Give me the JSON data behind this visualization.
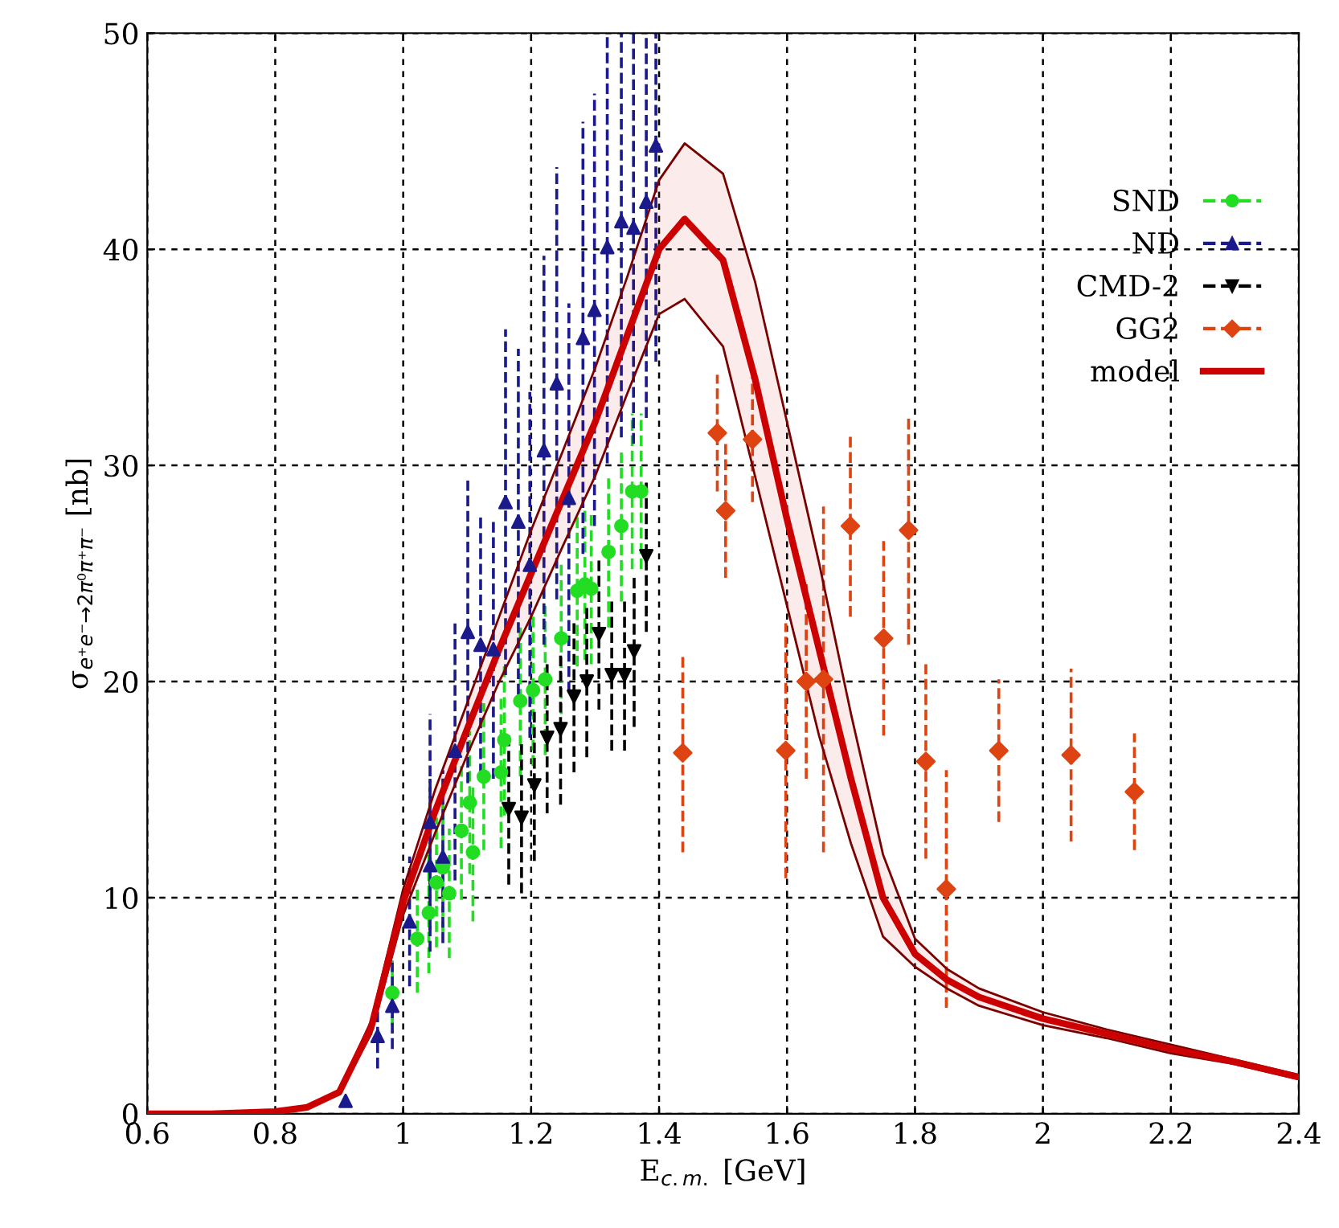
{
  "chart_data": {
    "type": "scatter",
    "xlabel": "E$_{c.m.}$ [GeV]",
    "ylabel": "σ$_{e⁺e⁻→2π⁰π⁺π⁻}$ [nb]",
    "xlim": [
      0.6,
      2.4
    ],
    "xticks": [
      0.6,
      0.8,
      1,
      1.2,
      1.4,
      1.6,
      1.8,
      2,
      2.2,
      2.4
    ],
    "ylim": [
      0,
      50
    ],
    "yticks": [
      0,
      10,
      20,
      30,
      40,
      50
    ],
    "grid": true,
    "legend": "top right",
    "series": [
      {
        "name": "SND",
        "color": "#22dd22",
        "marker": "circle",
        "line_style": "dashed",
        "x": [
          0.983,
          1.022,
          1.04,
          1.052,
          1.062,
          1.072,
          1.091,
          1.104,
          1.109,
          1.126,
          1.153,
          1.158,
          1.183,
          1.203,
          1.222,
          1.247,
          1.272,
          1.284,
          1.294,
          1.321,
          1.341,
          1.358,
          1.372
        ],
        "values": [
          5.6,
          8.1,
          9.3,
          10.7,
          11.4,
          10.2,
          13.1,
          14.4,
          12.1,
          15.6,
          15.8,
          17.3,
          19.1,
          19.6,
          20.1,
          22,
          24.2,
          24.5,
          24.3,
          26,
          27.2,
          28.8,
          28.8
        ],
        "errors": [
          1.5,
          2.5,
          2.8,
          3,
          3,
          3,
          3.2,
          3.3,
          3.2,
          3.4,
          3.5,
          3.5,
          3.5,
          3.5,
          3.5,
          3.5,
          3.5,
          3.5,
          3.5,
          3.5,
          3.5,
          3.6,
          3.6
        ]
      },
      {
        "name": "ND",
        "color": "#1a1a8c",
        "marker": "triangle",
        "line_style": "dashed",
        "x": [
          0.91,
          0.96,
          0.983,
          1.01,
          1.042,
          1.042,
          1.062,
          1.081,
          1.101,
          1.121,
          1.141,
          1.16,
          1.18,
          1.198,
          1.22,
          1.24,
          1.259,
          1.281,
          1.299,
          1.319,
          1.341,
          1.36,
          1.38,
          1.395
        ],
        "values": [
          0.6,
          3.6,
          5,
          8.9,
          11.5,
          13.5,
          11.9,
          16.8,
          22.3,
          21.7,
          21.5,
          28.3,
          27.4,
          25.4,
          30.7,
          33.8,
          28.5,
          35.9,
          37.2,
          40.1,
          41.3,
          41,
          42.2,
          44.8
        ],
        "errors": [
          null,
          1.5,
          2,
          3,
          4,
          5,
          4,
          6,
          7,
          6,
          6,
          8,
          8,
          8,
          9,
          10,
          9,
          [
            25.9,
            45.9
          ],
          [
            27.2,
            47.2
          ],
          [
            30.1,
            50
          ],
          [
            31.3,
            50
          ],
          [
            31,
            50
          ],
          [
            32.2,
            50
          ],
          [
            34.8,
            50
          ]
        ]
      },
      {
        "name": "CMD-2",
        "color": "#000000",
        "marker": "triangle_down",
        "line_style": "dashed",
        "x": [
          1.165,
          1.185,
          1.205,
          1.225,
          1.246,
          1.267,
          1.287,
          1.306,
          1.326,
          1.346,
          1.361,
          1.38
        ],
        "values": [
          14.1,
          13.7,
          15.2,
          17.4,
          17.8,
          19.3,
          20,
          22.2,
          20.3,
          20.3,
          21.4,
          25.8
        ],
        "errors": [
          3.5,
          3.5,
          3.5,
          3.5,
          3.5,
          3.5,
          3.5,
          3.5,
          3.5,
          3.5,
          3.5,
          3.5
        ]
      },
      {
        "name": "GG2",
        "color": "#dd4411",
        "marker": "diamond",
        "line_style": "dashed",
        "x": [
          1.437,
          1.491,
          1.504,
          1.546,
          1.598,
          1.63,
          1.657,
          1.699,
          1.751,
          1.79,
          1.817,
          1.849,
          1.931,
          2.044,
          2.143
        ],
        "values": [
          16.7,
          31.5,
          27.9,
          31.2,
          16.8,
          20,
          20.1,
          27.2,
          22,
          27,
          16.3,
          10.4,
          16.8,
          16.6,
          14.9
        ],
        "errors": [
          4.6,
          2.7,
          3.1,
          2.9,
          5.9,
          4.5,
          8,
          4.2,
          4.5,
          5.3,
          4.5,
          5.5,
          3.3,
          4,
          2.7
        ]
      },
      {
        "name": "model",
        "type": "line",
        "color": "#cc0000",
        "marker": "none",
        "line_style": "solid",
        "x": [
          0.6,
          0.7,
          0.8,
          0.85,
          0.9,
          0.95,
          1.0,
          1.05,
          1.1,
          1.15,
          1.2,
          1.25,
          1.3,
          1.35,
          1.4,
          1.44,
          1.5,
          1.55,
          1.6,
          1.65,
          1.7,
          1.75,
          1.8,
          1.85,
          1.9,
          2.0,
          2.1,
          2.2,
          2.3,
          2.4
        ],
        "values": [
          0,
          0,
          0.1,
          0.3,
          1,
          4,
          9.8,
          14,
          17.8,
          21.5,
          25,
          28.5,
          32,
          36,
          40,
          41.4,
          39.5,
          34,
          27.5,
          21.5,
          15.5,
          10,
          7.4,
          6.2,
          5.4,
          4.4,
          3.7,
          3,
          2.4,
          1.7
        ],
        "upper": [
          0,
          0,
          0.1,
          0.3,
          1.1,
          4.3,
          10.4,
          15,
          19,
          23,
          27,
          30.7,
          34.5,
          38.7,
          43.2,
          44.9,
          43.5,
          38.5,
          32,
          25.5,
          18.5,
          12,
          8.1,
          6.7,
          5.8,
          4.7,
          3.9,
          3.2,
          2.5,
          1.8
        ],
        "lower": [
          0,
          0,
          0.1,
          0.3,
          0.9,
          3.7,
          9.2,
          13,
          16.6,
          20,
          23,
          26.3,
          29.5,
          33.3,
          37,
          37.7,
          35.5,
          29.5,
          23.5,
          17.5,
          12.5,
          8.2,
          6.8,
          5.8,
          5,
          4.1,
          3.5,
          2.8,
          2.3,
          1.6
        ]
      }
    ]
  }
}
